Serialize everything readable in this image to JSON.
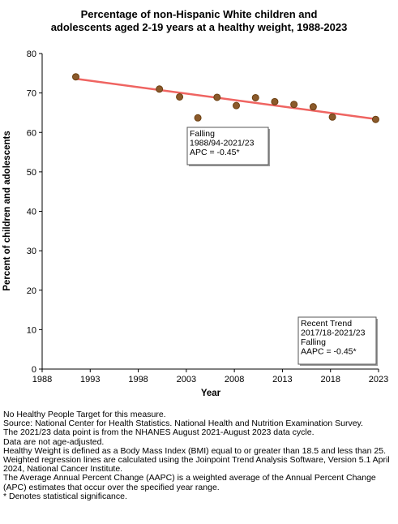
{
  "chart_data": {
    "type": "scatter",
    "title_lines": [
      "Percentage of non-Hispanic White children and",
      "adolescents aged 2-19 years at a healthy weight, 1988-2023"
    ],
    "xlabel": "Year",
    "ylabel": "Percent of children and adolescents",
    "xlim": [
      1988,
      2023
    ],
    "ylim": [
      0,
      80
    ],
    "x_ticks": [
      1988,
      1993,
      1998,
      2003,
      2008,
      2013,
      2018,
      2023
    ],
    "y_ticks": [
      0,
      10,
      20,
      30,
      40,
      50,
      60,
      70,
      80
    ],
    "grid": false,
    "series": [
      {
        "points": [
          {
            "x": 1991.5,
            "y": 74.1
          },
          {
            "x": 2000.2,
            "y": 71.0
          },
          {
            "x": 2002.3,
            "y": 69.0
          },
          {
            "x": 2004.2,
            "y": 63.7
          },
          {
            "x": 2006.2,
            "y": 68.9
          },
          {
            "x": 2008.2,
            "y": 66.8
          },
          {
            "x": 2010.2,
            "y": 68.8
          },
          {
            "x": 2012.2,
            "y": 67.8
          },
          {
            "x": 2014.2,
            "y": 67.1
          },
          {
            "x": 2016.2,
            "y": 66.5
          },
          {
            "x": 2018.2,
            "y": 63.9
          },
          {
            "x": 2022.7,
            "y": 63.3
          }
        ],
        "marker_color": "#8B5A2B",
        "marker_stroke": "#6B3F10"
      }
    ],
    "trend_line": {
      "start": {
        "x": 1991.5,
        "y": 73.6
      },
      "end": {
        "x": 2022.7,
        "y": 63.4
      },
      "color": "#EF6461"
    },
    "annotations": [
      {
        "lines": [
          "Falling",
          "1988/94-2021/23",
          "APC = -0.45*"
        ]
      },
      {
        "lines": [
          "Recent Trend",
          "2017/18-2021/23",
          "Falling",
          "AAPC = -0.45*"
        ]
      }
    ]
  },
  "notes": [
    "No Healthy People Target for this measure.",
    "Source: National Center for Health Statistics. National Health and Nutrition Examination Survey.",
    "The 2021/23 data point is from the NHANES August 2021-August 2023 data cycle.",
    "Data are not age-adjusted.",
    "Healthy Weight is defined as a Body Mass Index (BMI) equal to or greater than 18.5 and less than 25.",
    "Weighted regression lines are calculated using the Joinpoint Trend Analysis Software, Version 5.1 April 2024, National Cancer Institute.",
    "The Average Annual Percent Change (AAPC) is a weighted average of the Annual Percent Change (APC) estimates that occur over the specified year range.",
    "* Denotes statistical significance."
  ]
}
